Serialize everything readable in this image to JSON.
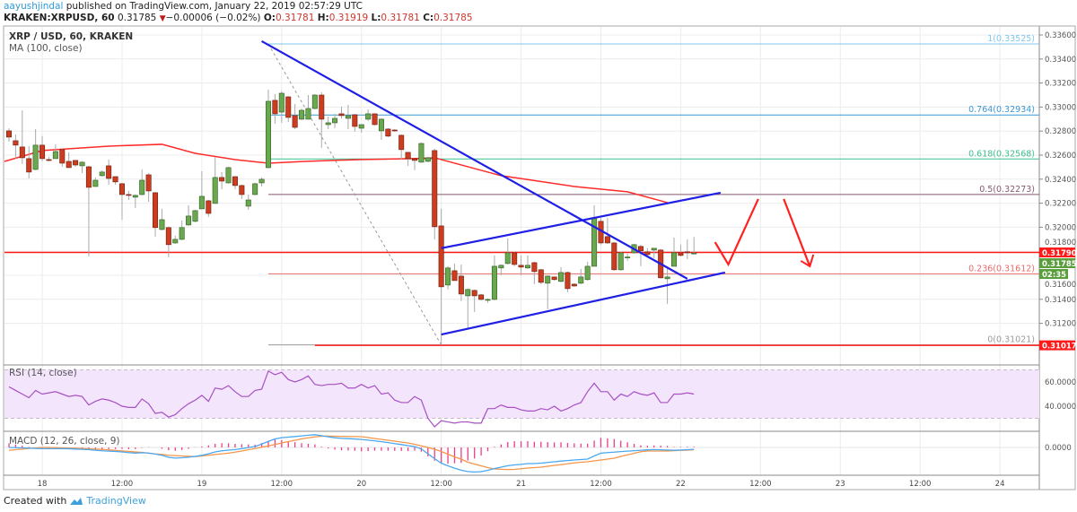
{
  "header": {
    "user": "aayushjindal",
    "published": " published on TradingView.com, January 22, 2019 02:57:29 UTC",
    "symbol": "KRAKEN:XRPUSD, 60",
    "last": "0.31785",
    "change": "−0.00006 (−0.02%)",
    "o_label": "O:",
    "o": "0.31781",
    "h_label": "H:",
    "h": "0.31919",
    "l_label": "L:",
    "l": "0.31781",
    "c_label": "C:",
    "c": "0.31785",
    "down_icon": "triangle-down-icon"
  },
  "pane_labels": {
    "main": "XRP / USD, 60, KRAKEN",
    "ma": "MA (100, close)",
    "rsi": "RSI (14, close)",
    "macd": "MACD (12, 26, close, 9)"
  },
  "footer": {
    "created": "Created with",
    "brand": "TradingView",
    "logo_icon": "tradingview-logo-icon"
  },
  "colors": {
    "up": "#6aa84f",
    "down": "#cc3d1f",
    "ma": "#ff2a2a",
    "trend": "#1f1fe6",
    "rsi": "#a84fc4",
    "macd": "#4aa8f0",
    "signal": "#f4964a",
    "hist": "#ee3d8c"
  },
  "chart_data": {
    "type": "candlestick",
    "symbol": "XRP / USD",
    "interval": "60",
    "x_ticks": [
      "18",
      "12:00",
      "19",
      "12:00",
      "20",
      "12:00",
      "21",
      "12:00",
      "22",
      "12:00",
      "23",
      "12:00",
      "24"
    ],
    "y_ticks": [
      "0.33600",
      "0.33400",
      "0.33200",
      "0.33000",
      "0.32800",
      "0.32600",
      "0.32400",
      "0.32200",
      "0.32000",
      "0.31800",
      "0.31600",
      "0.31400",
      "0.31200"
    ],
    "ylim": [
      0.3088,
      0.337
    ],
    "badges": [
      {
        "value": "0.31790",
        "price": 0.3179,
        "color": "#ff1a1a"
      },
      {
        "value": "0.31785",
        "price": 0.31785,
        "color": "#5a9e3c"
      },
      {
        "value": "02:35",
        "price": 0.317,
        "color": "#5a9e3c"
      },
      {
        "value": "0.31017",
        "price": 0.31017,
        "color": "#ff1a1a"
      }
    ],
    "candles": [
      [
        0.32802,
        0.32824,
        0.32712,
        0.3275
      ],
      [
        0.3272,
        0.32772,
        0.32571,
        0.32683
      ],
      [
        0.32668,
        0.32973,
        0.32526,
        0.32578
      ],
      [
        0.32571,
        0.32675,
        0.32406,
        0.32459
      ],
      [
        0.32481,
        0.32817,
        0.32474,
        0.32683
      ],
      [
        0.32683,
        0.32758,
        0.32548,
        0.32571
      ],
      [
        0.32563,
        0.32586,
        0.32548,
        0.3256
      ],
      [
        0.32571,
        0.3269,
        0.32571,
        0.3263
      ],
      [
        0.32646,
        0.32653,
        0.32503,
        0.32533
      ],
      [
        0.32548,
        0.32623,
        0.32496,
        0.32496
      ],
      [
        0.32556,
        0.32556,
        0.32503,
        0.32518
      ],
      [
        0.32511,
        0.32548,
        0.32451,
        0.32541
      ],
      [
        0.32503,
        0.32511,
        0.31757,
        0.32332
      ],
      [
        0.32339,
        0.32414,
        0.32339,
        0.32391
      ],
      [
        0.32429,
        0.32474,
        0.32421,
        0.32459
      ],
      [
        0.32511,
        0.32563,
        0.32354,
        0.32406
      ],
      [
        0.32421,
        0.32421,
        0.32354,
        0.32377
      ],
      [
        0.32362,
        0.32369,
        0.32063,
        0.32272
      ],
      [
        0.32272,
        0.32302,
        0.32227,
        0.32265
      ],
      [
        0.3225,
        0.32272,
        0.3216,
        0.32265
      ],
      [
        0.32272,
        0.32481,
        0.32265,
        0.32391
      ],
      [
        0.32436,
        0.32451,
        0.32212,
        0.32302
      ],
      [
        0.32287,
        0.32295,
        0.31922,
        0.31997
      ],
      [
        0.31981,
        0.32153,
        0.31974,
        0.32063
      ],
      [
        0.31997,
        0.32004,
        0.3175,
        0.31855
      ],
      [
        0.31869,
        0.31929,
        0.31862,
        0.31899
      ],
      [
        0.31899,
        0.32056,
        0.31893,
        0.31997
      ],
      [
        0.32019,
        0.32183,
        0.32011,
        0.32093
      ],
      [
        0.32049,
        0.32145,
        0.32041,
        0.32138
      ],
      [
        0.32153,
        0.32466,
        0.32153,
        0.32257
      ],
      [
        0.3222,
        0.32227,
        0.32086,
        0.32115
      ],
      [
        0.32198,
        0.32586,
        0.32198,
        0.32414
      ],
      [
        0.32414,
        0.32459,
        0.32317,
        0.32384
      ],
      [
        0.32369,
        0.32503,
        0.32362,
        0.32496
      ],
      [
        0.32421,
        0.32421,
        0.32317,
        0.32347
      ],
      [
        0.32347,
        0.32354,
        0.32235,
        0.32272
      ],
      [
        0.32175,
        0.32272,
        0.32145,
        0.32227
      ],
      [
        0.32272,
        0.32369,
        0.32265,
        0.32362
      ],
      [
        0.32369,
        0.32414,
        0.32339,
        0.32399
      ],
      [
        0.32496,
        0.33145,
        0.32489,
        0.33048
      ],
      [
        0.33056,
        0.33108,
        0.32861,
        0.32944
      ],
      [
        0.32958,
        0.3313,
        0.32869,
        0.33115
      ],
      [
        0.33085,
        0.33093,
        0.32876,
        0.32914
      ],
      [
        0.32929,
        0.33026,
        0.32817,
        0.32831
      ],
      [
        0.32899,
        0.32988,
        0.32891,
        0.32973
      ],
      [
        0.32899,
        0.331,
        0.32899,
        0.32988
      ],
      [
        0.32988,
        0.33108,
        0.32981,
        0.331
      ],
      [
        0.331,
        0.33123,
        0.32661,
        0.32899
      ],
      [
        0.32854,
        0.32921,
        0.32817,
        0.32869
      ],
      [
        0.32869,
        0.32944,
        0.32824,
        0.32906
      ],
      [
        0.32944,
        0.33003,
        0.32906,
        0.32929
      ],
      [
        0.32906,
        0.33019,
        0.32817,
        0.32929
      ],
      [
        0.32936,
        0.32944,
        0.32795,
        0.32839
      ],
      [
        0.32824,
        0.32854,
        0.32787,
        0.32854
      ],
      [
        0.32899,
        0.32981,
        0.32884,
        0.32944
      ],
      [
        0.32944,
        0.32944,
        0.32846,
        0.32854
      ],
      [
        0.32802,
        0.32906,
        0.32727,
        0.32899
      ],
      [
        0.32817,
        0.32824,
        0.3275,
        0.32758
      ],
      [
        0.32809,
        0.32817,
        0.32795,
        0.32802
      ],
      [
        0.32765,
        0.32772,
        0.32563,
        0.32646
      ],
      [
        0.32623,
        0.32623,
        0.32511,
        0.32571
      ],
      [
        0.32571,
        0.32571,
        0.32474,
        0.32556
      ],
      [
        0.32541,
        0.32705,
        0.32541,
        0.32697
      ],
      [
        0.32548,
        0.32586,
        0.32541,
        0.32578
      ],
      [
        0.32638,
        0.32653,
        0.31899,
        0.32004
      ],
      [
        0.32011,
        0.32153,
        0.3102,
        0.31504
      ],
      [
        0.31519,
        0.31675,
        0.31482,
        0.31661
      ],
      [
        0.31638,
        0.31698,
        0.31556,
        0.31556
      ],
      [
        0.31593,
        0.3169,
        0.31385,
        0.31444
      ],
      [
        0.31429,
        0.31489,
        0.31161,
        0.31482
      ],
      [
        0.31474,
        0.31482,
        0.31295,
        0.31429
      ],
      [
        0.31437,
        0.31444,
        0.31392,
        0.31399
      ],
      [
        0.31392,
        0.31407,
        0.3137,
        0.31399
      ],
      [
        0.31399,
        0.31765,
        0.31392,
        0.31675
      ],
      [
        0.31661,
        0.3169,
        0.31601,
        0.31683
      ],
      [
        0.31698,
        0.31907,
        0.3169,
        0.31787
      ],
      [
        0.31787,
        0.31795,
        0.31675,
        0.3169
      ],
      [
        0.31683,
        0.31765,
        0.31601,
        0.31668
      ],
      [
        0.31661,
        0.31765,
        0.31653,
        0.31683
      ],
      [
        0.31705,
        0.31713,
        0.31526,
        0.31631
      ],
      [
        0.31646,
        0.31653,
        0.31526,
        0.31541
      ],
      [
        0.31534,
        0.31601,
        0.31317,
        0.31593
      ],
      [
        0.31586,
        0.31586,
        0.31556,
        0.31564
      ],
      [
        0.31549,
        0.31668,
        0.31541,
        0.31623
      ],
      [
        0.31623,
        0.31631,
        0.31459,
        0.31489
      ],
      [
        0.31526,
        0.31534,
        0.31504,
        0.31511
      ],
      [
        0.31534,
        0.31653,
        0.31526,
        0.31586
      ],
      [
        0.31564,
        0.31713,
        0.31556,
        0.31675
      ],
      [
        0.31675,
        0.32183,
        0.31675,
        0.32078
      ],
      [
        0.32049,
        0.32078,
        0.31855,
        0.31869
      ],
      [
        0.31922,
        0.32078,
        0.31862,
        0.31869
      ],
      [
        0.31869,
        0.31876,
        0.31638,
        0.31646
      ],
      [
        0.31646,
        0.31795,
        0.31638,
        0.31787
      ],
      [
        0.3175,
        0.3178,
        0.3172,
        0.31752
      ],
      [
        0.31787,
        0.31862,
        0.3178,
        0.31855
      ],
      [
        0.3184,
        0.31855,
        0.31675,
        0.31803
      ],
      [
        0.31795,
        0.31825,
        0.31765,
        0.31772
      ],
      [
        0.3181,
        0.31825,
        0.31743,
        0.31825
      ],
      [
        0.3181,
        0.31818,
        0.31571,
        0.31579
      ],
      [
        0.31571,
        0.31661,
        0.31362,
        0.31586
      ],
      [
        0.31675,
        0.31914,
        0.31675,
        0.31787
      ],
      [
        0.31787,
        0.31855,
        0.31757,
        0.31765
      ],
      [
        0.31795,
        0.31899,
        0.31735,
        0.31787
      ],
      [
        0.31781,
        0.31919,
        0.31781,
        0.31785
      ]
    ],
    "ma100": [
      [
        "17 17:40",
        0.32548
      ],
      [
        "18 00:00",
        0.32638
      ],
      [
        "18 10:00",
        0.32675
      ],
      [
        "18 18:00",
        0.3269
      ],
      [
        "18 23:00",
        0.32615
      ],
      [
        "19 05:00",
        0.32563
      ],
      [
        "19 10:00",
        0.32533
      ],
      [
        "19 15:30",
        0.32548
      ],
      [
        "19 23:35",
        0.32563
      ],
      [
        "20 07:40",
        0.32571
      ],
      [
        "20 11:00",
        0.32578
      ],
      [
        "20 14:30",
        0.32526
      ],
      [
        "20 21:00",
        0.32429
      ],
      [
        "21 08:00",
        0.32339
      ],
      [
        "21 16:00",
        0.32295
      ],
      [
        "21 22:00",
        0.32205
      ]
    ],
    "fib": {
      "from": "19 10:00",
      "levels": [
        {
          "label": "1(0.33525)",
          "price": 0.33525,
          "color": "#7ec8ec"
        },
        {
          "label": "0.764(0.32934)",
          "price": 0.32934,
          "color": "#3c98d2"
        },
        {
          "label": "0.618(0.32568)",
          "price": 0.32568,
          "color": "#3cc08f"
        },
        {
          "label": "0.5(0.32273)",
          "price": 0.32273,
          "color": "#85586f"
        },
        {
          "label": "0.236(0.31612)",
          "price": 0.31612,
          "color": "#e86a6a"
        },
        {
          "label": "0(0.31021)",
          "price": 0.31021,
          "color": "#9a9a9a"
        }
      ],
      "diagonal": [
        [
          "19 10:00",
          0.33525
        ],
        [
          "20 12:00",
          0.31021
        ]
      ]
    },
    "horizontal_lines": [
      {
        "price": 0.3179,
        "from": "17 17:00",
        "color": "#ff1a1a"
      },
      {
        "price": 0.31017,
        "from": "19 17:00",
        "color": "#ff1a1a"
      }
    ],
    "trend_lines": [
      [
        [
          "19 09:00",
          0.33548
        ],
        [
          "22 01:00",
          0.31571
        ]
      ],
      [
        [
          "20 12:00",
          0.31825
        ],
        [
          "22 06:00",
          0.32287
        ]
      ],
      [
        [
          "20 12:00",
          0.31107
        ],
        [
          "22 06:40",
          0.31623
        ]
      ]
    ],
    "arrow_path": [
      [
        "22 05:10",
        0.31876
      ],
      [
        "22 07:10",
        0.3169
      ],
      [
        "22 11:40",
        0.32235
      ]
    ],
    "arrow_down": [
      [
        "22 15:30",
        0.32235
      ],
      [
        "22 19:25",
        0.31675
      ]
    ],
    "rsi": {
      "ticks": [
        "60.0000",
        "40.0000"
      ],
      "upper": 70,
      "lower": 30,
      "values": [
        56,
        53,
        50,
        47,
        53,
        50,
        51,
        52,
        50,
        48,
        49,
        48,
        41,
        44,
        46,
        45,
        43,
        40,
        39,
        39,
        46,
        42,
        34,
        35,
        31,
        33,
        38,
        42,
        45,
        49,
        44,
        55,
        54,
        57,
        52,
        48,
        48,
        53,
        54,
        69,
        66,
        68,
        62,
        60,
        62,
        65,
        58,
        57,
        58,
        58,
        59,
        55,
        55,
        58,
        55,
        57,
        50,
        51,
        45,
        43,
        43,
        48,
        45,
        30,
        23,
        28,
        27,
        26,
        27,
        27,
        26,
        26,
        38,
        38,
        41,
        39,
        39,
        37,
        36,
        36,
        38,
        37,
        40,
        36,
        38,
        41,
        43,
        52,
        59,
        52,
        52,
        45,
        50,
        48,
        52,
        50,
        49,
        51,
        43,
        43,
        50,
        50,
        51,
        50
      ]
    },
    "macd": {
      "ticks": [
        "0.0000"
      ],
      "macd": [
        0.0,
        -5e-06,
        -1e-05,
        -1.5e-05,
        -2.2e-05,
        -2.7e-05,
        -2.7e-05,
        -2.7e-05,
        -2.7e-05,
        -2.9e-05,
        -3.6e-05,
        -4.2e-05,
        -4.9e-05,
        -6.2e-05,
        -7.5e-05,
        -8.2e-05,
        -8.9e-05,
        -0.0001,
        -0.000115,
        -0.000126,
        -0.000118,
        -0.000125,
        -0.000147,
        -0.000175,
        -0.00022,
        -0.000237,
        -0.00023,
        -0.000218,
        -0.0002,
        -0.000176,
        -0.000142,
        -0.0001,
        -7.5e-05,
        -6e-05,
        -4.8e-05,
        -2.8e-05,
        -2e-06,
        2e-05,
        7.5e-05,
        0.000135,
        0.00019,
        0.000217,
        0.00023,
        0.000244,
        0.000258,
        0.000273,
        0.000284,
        0.000262,
        0.000238,
        0.000216,
        0.000203,
        0.000196,
        0.000189,
        0.000177,
        0.000162,
        0.000148,
        0.000128,
        0.000108,
        8.5e-05,
        6.4e-05,
        4e-05,
        1.9e-05,
        -3.3e-05,
        -0.000142,
        -0.00025,
        -0.00035,
        -0.00041,
        -0.000463,
        -0.000507,
        -0.000538,
        -0.000547,
        -0.00054,
        -0.00051,
        -0.00047,
        -0.00044,
        -0.000407,
        -0.00039,
        -0.000377,
        -0.00036,
        -0.00036,
        -0.00035,
        -0.000335,
        -0.00032,
        -0.000304,
        -0.000293,
        -0.00028,
        -0.00027,
        -0.00026,
        -0.00019,
        -0.000127,
        -0.000115,
        -0.000105,
        -9.3e-05,
        -8.3e-05,
        -7.3e-05,
        -6.2e-05,
        -5.4e-05,
        -4.8e-05,
        -5.2e-05,
        -5.7e-05,
        -6.4e-05,
        -5.8e-05,
        -5e-05,
        -4.2e-05
      ],
      "signal": [
        -6.5e-05,
        -5e-05,
        -3.7e-05,
        -2.3e-05,
        -1e-05,
        0.0,
        0.0,
        -5e-06,
        -1e-05,
        -1.2e-05,
        -1.8e-05,
        -2.4e-05,
        -3e-05,
        -3.8e-05,
        -4.5e-05,
        -5.5e-05,
        -6.5e-05,
        -7.8e-05,
        -8.8e-05,
        -0.0001,
        -0.00011,
        -0.00013,
        -0.000145,
        -0.000155,
        -0.000175,
        -0.000183,
        -0.00019,
        -0.000197,
        -0.000204,
        -0.00019,
        -0.000175,
        -0.000158,
        -0.000143,
        -0.000127,
        -0.000105,
        -8e-05,
        -5e-05,
        -2.5e-05,
        5e-06,
        3.5e-05,
        6.5e-05,
        0.0001,
        0.00013,
        0.00016,
        0.00019,
        0.000215,
        0.000235,
        0.00025,
        0.000253,
        0.00025,
        0.000248,
        0.000245,
        0.000242,
        0.00024,
        0.00022,
        0.0002,
        0.00018,
        0.00016,
        0.00014,
        0.00012,
        0.0001,
        7e-05,
        3.5e-05,
        0.0,
        -4e-05,
        -9e-05,
        -0.00015,
        -0.00021,
        -0.00026,
        -0.00033,
        -0.00037,
        -0.00041,
        -0.00045,
        -0.00048,
        -0.000488,
        -0.000493,
        -0.00049,
        -0.000475,
        -0.00046,
        -0.00045,
        -0.00044,
        -0.00042,
        -0.0004,
        -0.000385,
        -0.000365,
        -0.000345,
        -0.00033,
        -0.00032,
        -0.0003,
        -0.00028,
        -0.00026,
        -0.00024,
        -0.0002,
        -0.000165,
        -0.00013,
        -9.5e-05,
        -8e-05,
        -8e-05,
        -8e-05,
        -8e-05,
        -7.2e-05,
        -6.5e-05,
        -6e-05,
        -5.3e-05
      ]
    }
  }
}
